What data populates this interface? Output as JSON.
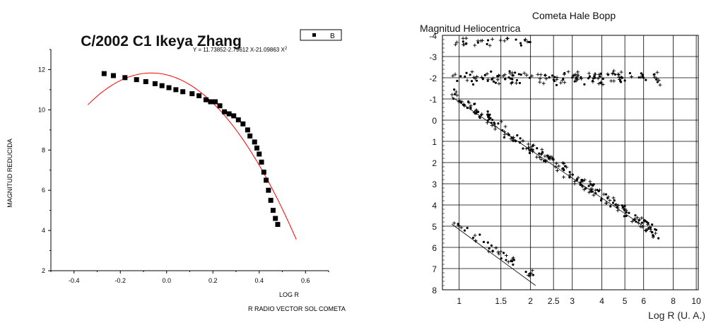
{
  "chart_data": [
    {
      "type": "scatter",
      "title": "C/2002 C1 Ikeya Zhang",
      "equation": "Y = 11.73852-2.79612 X-21.09863 X",
      "equation_exp": "2",
      "legend_label": "B",
      "xlabel": "LOG R",
      "xlabel2": "R RADIO VECTOR SOL COMETA",
      "ylabel": "MAGNITUD REDUCIDA",
      "xlim": [
        -0.5,
        0.7
      ],
      "ylim": [
        2,
        13
      ],
      "x_ticks": [
        -0.4,
        -0.2,
        0.0,
        0.2,
        0.4,
        0.6
      ],
      "x_tick_labels": [
        "-0.4",
        "-0.2",
        "0.0",
        "0.2",
        "0.4",
        "0.6"
      ],
      "y_ticks": [
        2,
        4,
        6,
        8,
        10,
        12
      ],
      "y_tick_labels": [
        "2",
        "4",
        "6",
        "8",
        "10",
        "12"
      ],
      "grid": false,
      "legend_position": "top-right",
      "series": [
        {
          "name": "B",
          "x": [
            -0.27,
            -0.23,
            -0.18,
            -0.13,
            -0.09,
            -0.05,
            -0.02,
            0.01,
            0.04,
            0.07,
            0.11,
            0.14,
            0.17,
            0.19,
            0.21,
            0.23,
            0.25,
            0.27,
            0.29,
            0.31,
            0.33,
            0.35,
            0.36,
            0.38,
            0.39,
            0.4,
            0.41,
            0.42,
            0.43,
            0.44,
            0.45,
            0.46,
            0.47,
            0.48
          ],
          "y": [
            11.8,
            11.7,
            11.6,
            11.5,
            11.4,
            11.3,
            11.2,
            11.1,
            11.0,
            10.9,
            10.8,
            10.7,
            10.5,
            10.4,
            10.4,
            10.2,
            9.9,
            9.8,
            9.7,
            9.5,
            9.3,
            9.0,
            8.7,
            8.4,
            8.1,
            7.8,
            7.4,
            6.9,
            6.5,
            6.0,
            5.5,
            5.0,
            4.6,
            4.3
          ]
        }
      ],
      "fit": {
        "coefficients": [
          11.73852,
          -2.79612,
          -21.09863
        ],
        "x_range": [
          -0.34,
          0.56
        ],
        "color": "#ff0000"
      }
    },
    {
      "type": "scatter",
      "title": "Cometa  Hale  Bopp",
      "ylabel": "Magnitud Heliocentrica",
      "xlabel": "Log R  (U. A.)",
      "x_scale": "log",
      "xlim": [
        0.85,
        10.2
      ],
      "ylim": [
        8,
        -4
      ],
      "y_inverted": true,
      "x_ticks": [
        1,
        1.5,
        2,
        2.5,
        3,
        4,
        5,
        6,
        8,
        10
      ],
      "x_tick_labels": [
        "1",
        "1.5",
        "2",
        "2.5",
        "3",
        "4",
        "5",
        "6",
        "8",
        "10"
      ],
      "y_ticks": [
        -4,
        -3,
        -2,
        -1,
        0,
        1,
        2,
        3,
        4,
        5,
        6,
        7,
        8
      ],
      "y_tick_labels": [
        "-4",
        "-3",
        "-2",
        "-1",
        "0",
        "1",
        "2",
        "3",
        "4",
        "5",
        "6",
        "7",
        "8"
      ],
      "grid": true,
      "groups": [
        {
          "name": "",
          "x_range": [
            0.93,
            7.2
          ],
          "y_center": -2.0,
          "y_spread": 0.25,
          "count": 150
        },
        {
          "name": "",
          "x_range": [
            0.93,
            7.0
          ],
          "y_trend": [
            -1.2,
            5.4
          ],
          "y_spread": 0.25,
          "count": 230
        },
        {
          "name": "",
          "x_range": [
            0.93,
            2.1
          ],
          "y_center": -3.7,
          "y_spread": 0.15,
          "count": 30,
          "note_invert": true
        },
        {
          "name": "",
          "x_range": [
            0.93,
            2.1
          ],
          "y_trend": [
            4.8,
            7.4
          ],
          "y_spread": 0.2,
          "count": 40
        }
      ],
      "trend_lines": [
        {
          "x": [
            0.93,
            6.0
          ],
          "y": [
            -1.1,
            5.0
          ]
        },
        {
          "x": [
            0.93,
            2.1
          ],
          "y": [
            4.9,
            7.8
          ]
        }
      ]
    }
  ]
}
